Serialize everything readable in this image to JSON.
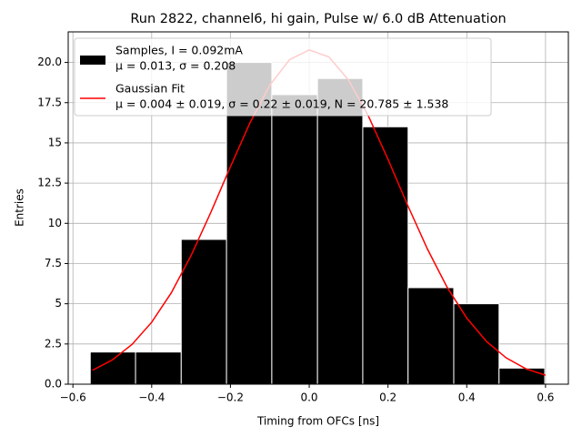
{
  "chart_data": {
    "type": "histogram",
    "title": "Run 2822, channel6, hi gain, Pulse w/ 6.0 dB Attenuation",
    "x_label": "Timing from OFCs [ns]",
    "y_label": "Entries",
    "xlim": [
      -0.612,
      0.658
    ],
    "ylim": [
      0,
      21.9
    ],
    "xticks": [
      {
        "value": -0.6,
        "label": "−0.6"
      },
      {
        "value": -0.4,
        "label": "−0.4"
      },
      {
        "value": -0.2,
        "label": "−0.2"
      },
      {
        "value": 0,
        "label": "0.0"
      },
      0.2,
      0.4,
      0.6
    ],
    "yticks": [
      {
        "value": 0,
        "label": "0.0"
      },
      2.5,
      5,
      7.5,
      10,
      12.5,
      15,
      17.5,
      {
        "value": 20,
        "label": "20.0"
      }
    ],
    "grid": true,
    "legend": "upper left",
    "series": [
      {
        "type": "histogram",
        "name": "Samples, I = 0.092mA",
        "name_line2": "μ = 0.013, σ = 0.208",
        "color": "#000000",
        "bins": [
          -0.556,
          -0.441,
          -0.325,
          -0.21,
          -0.095,
          0.021,
          0.136,
          0.251,
          0.367,
          0.482,
          0.598
        ],
        "values": [
          2,
          2,
          9,
          20,
          18,
          19,
          16,
          6,
          5,
          1
        ]
      },
      {
        "type": "line",
        "name": "Gaussian Fit",
        "name_line2": "μ = 0.004 ± 0.019, σ = 0.22 ± 0.019, N = 20.785 ± 1.538",
        "color": "#ff0000",
        "x": [
          -0.55,
          -0.5,
          -0.45,
          -0.4,
          -0.35,
          -0.3,
          -0.25,
          -0.2,
          -0.15,
          -0.1,
          -0.05,
          0,
          0.05,
          0.1,
          0.15,
          0.2,
          0.25,
          0.3,
          0.35,
          0.4,
          0.45,
          0.5,
          0.55,
          0.6
        ],
        "values": [
          0.87,
          1.51,
          2.47,
          3.85,
          5.69,
          8.0,
          10.67,
          13.52,
          16.27,
          18.59,
          20.17,
          20.78,
          20.34,
          18.9,
          16.68,
          13.98,
          11.12,
          8.41,
          6.03,
          4.11,
          2.66,
          1.64,
          0.96,
          0.56
        ]
      }
    ]
  }
}
